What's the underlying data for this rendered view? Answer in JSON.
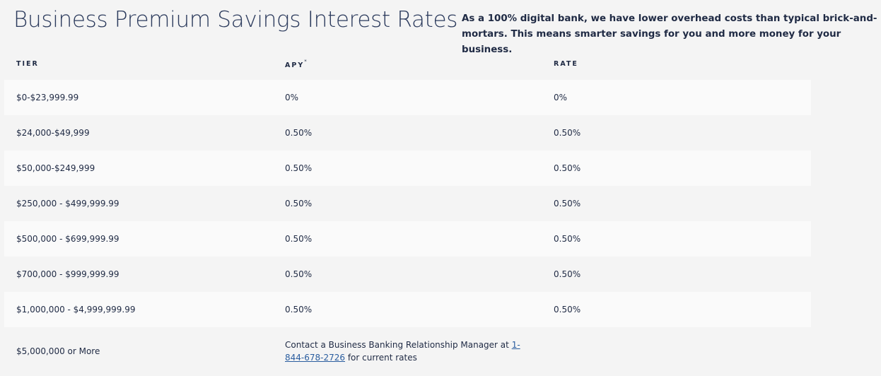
{
  "header": {
    "title": "Business Premium Savings Interest Rates",
    "intro": "As a 100% digital bank, we have lower overhead costs than typical brick-and-mortars. This means smarter savings for you and more money for your business."
  },
  "table": {
    "columns": {
      "tier": "TIER",
      "apy": "APY",
      "apy_marker": "*",
      "rate": "RATE"
    },
    "rows": [
      {
        "tier": "$0-$23,999.99",
        "apy": "0%",
        "rate": "0%"
      },
      {
        "tier": "$24,000-$49,999",
        "apy": "0.50%",
        "rate": "0.50%"
      },
      {
        "tier": "$50,000-$249,999",
        "apy": "0.50%",
        "rate": "0.50%"
      },
      {
        "tier": "$250,000 - $499,999.99",
        "apy": "0.50%",
        "rate": "0.50%"
      },
      {
        "tier": "$500,000 - $699,999.99",
        "apy": "0.50%",
        "rate": "0.50%"
      },
      {
        "tier": "$700,000 - $999,999.99",
        "apy": "0.50%",
        "rate": "0.50%"
      },
      {
        "tier": "$1,000,000 - $4,999,999.99",
        "apy": "0.50%",
        "rate": "0.50%"
      }
    ],
    "last_row": {
      "tier": "$5,000,000 or More",
      "contact_prefix": "Contact a Business Banking Relationship Manager at ",
      "contact_phone": "1-844-678-2726",
      "contact_suffix": " for current rates"
    }
  },
  "colors": {
    "background": "#f4f4f4",
    "row_shaded": "#fafafa",
    "text": "#1f2a44",
    "link": "#2a5d9f"
  }
}
